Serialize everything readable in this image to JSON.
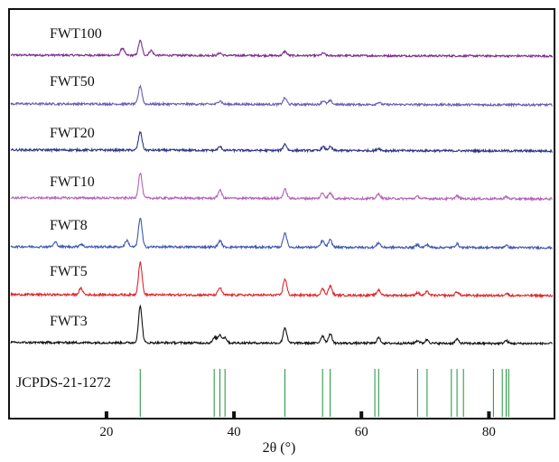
{
  "chart_data": {
    "type": "line",
    "title": "",
    "xlabel": "2θ (°)",
    "ylabel": "",
    "xlim": [
      5,
      90
    ],
    "xticks": [
      20,
      40,
      60,
      80
    ],
    "grid": false,
    "colors": {
      "FWT100": "#7b2d8e",
      "FWT50": "#6a5bb0",
      "FWT20": "#2f3585",
      "FWT10": "#b463b8",
      "FWT8": "#3f58b0",
      "FWT5": "#e0262a",
      "FWT3": "#111111",
      "reference": "#2e9a4a"
    },
    "series": [
      {
        "name": "FWT100",
        "peaks": [
          [
            22.5,
            0.45
          ],
          [
            25.3,
            0.9
          ],
          [
            27.0,
            0.3
          ],
          [
            37.8,
            0.15
          ],
          [
            48.0,
            0.25
          ],
          [
            54.0,
            0.15
          ]
        ]
      },
      {
        "name": "FWT50",
        "peaks": [
          [
            25.3,
            1.0
          ],
          [
            37.8,
            0.2
          ],
          [
            48.0,
            0.35
          ],
          [
            54.0,
            0.2
          ],
          [
            55.1,
            0.2
          ],
          [
            62.7,
            0.12
          ]
        ]
      },
      {
        "name": "FWT20",
        "peaks": [
          [
            25.3,
            1.0
          ],
          [
            37.8,
            0.2
          ],
          [
            48.0,
            0.35
          ],
          [
            54.0,
            0.2
          ],
          [
            55.1,
            0.2
          ],
          [
            62.7,
            0.12
          ]
        ]
      },
      {
        "name": "FWT10",
        "peaks": [
          [
            25.3,
            1.4
          ],
          [
            37.8,
            0.45
          ],
          [
            48.0,
            0.5
          ],
          [
            53.9,
            0.3
          ],
          [
            55.1,
            0.3
          ],
          [
            62.7,
            0.25
          ],
          [
            68.8,
            0.12
          ],
          [
            75.0,
            0.15
          ],
          [
            82.7,
            0.1
          ]
        ]
      },
      {
        "name": "FWT8",
        "peaks": [
          [
            12.0,
            0.25
          ],
          [
            16.0,
            0.15
          ],
          [
            23.2,
            0.35
          ],
          [
            25.3,
            1.6
          ],
          [
            37.8,
            0.35
          ],
          [
            48.0,
            0.8
          ],
          [
            53.9,
            0.35
          ],
          [
            55.1,
            0.4
          ],
          [
            62.7,
            0.25
          ],
          [
            68.8,
            0.15
          ],
          [
            70.3,
            0.15
          ],
          [
            75.0,
            0.2
          ],
          [
            82.7,
            0.12
          ]
        ]
      },
      {
        "name": "FWT5",
        "peaks": [
          [
            16.0,
            0.35
          ],
          [
            25.3,
            1.8
          ],
          [
            37.8,
            0.4
          ],
          [
            48.0,
            0.9
          ],
          [
            53.9,
            0.35
          ],
          [
            55.1,
            0.5
          ],
          [
            62.7,
            0.3
          ],
          [
            68.8,
            0.15
          ],
          [
            70.3,
            0.2
          ],
          [
            75.0,
            0.2
          ],
          [
            82.7,
            0.12
          ]
        ]
      },
      {
        "name": "FWT3",
        "peaks": [
          [
            25.3,
            2.0
          ],
          [
            37.0,
            0.3
          ],
          [
            37.8,
            0.45
          ],
          [
            38.6,
            0.3
          ],
          [
            48.0,
            0.85
          ],
          [
            53.9,
            0.4
          ],
          [
            55.1,
            0.5
          ],
          [
            62.7,
            0.3
          ],
          [
            68.8,
            0.15
          ],
          [
            70.3,
            0.2
          ],
          [
            75.0,
            0.22
          ],
          [
            82.7,
            0.15
          ]
        ]
      }
    ],
    "reference": {
      "name": "JCPDS-21-1272",
      "positions": [
        25.3,
        36.9,
        37.8,
        38.6,
        48.0,
        53.9,
        55.1,
        62.1,
        62.7,
        68.8,
        70.3,
        74.1,
        75.0,
        76.0,
        80.7,
        82.1,
        82.7,
        83.1
      ]
    }
  }
}
